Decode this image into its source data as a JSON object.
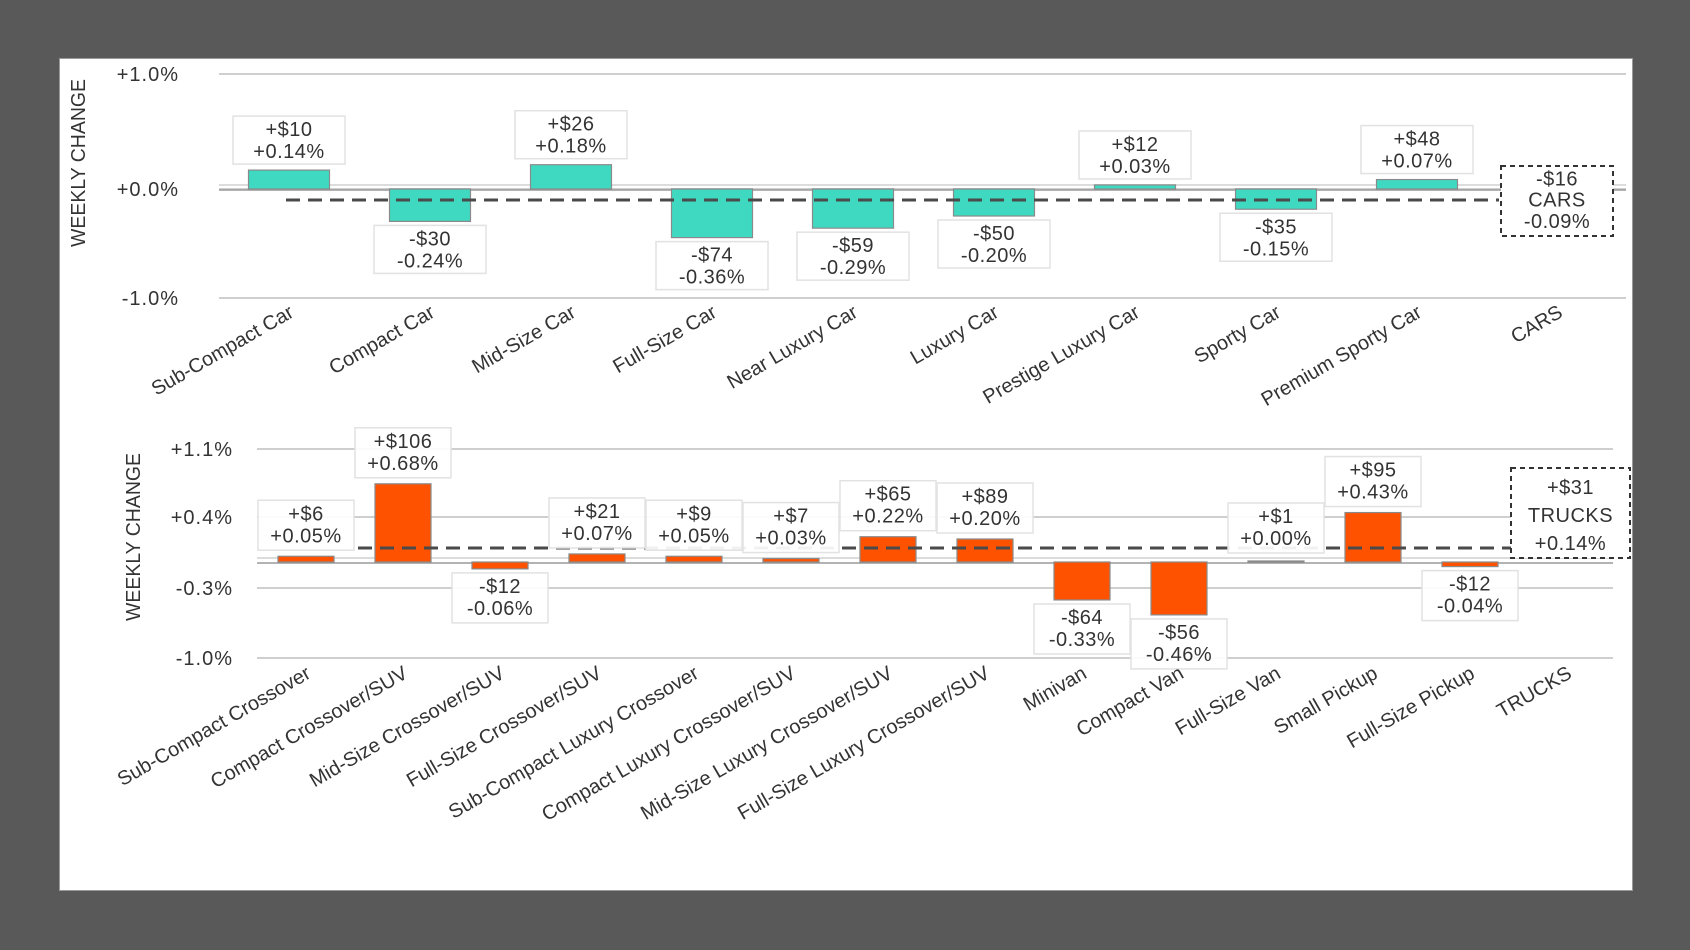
{
  "background_color": "#595959",
  "chart_data": [
    {
      "type": "bar",
      "title": "",
      "ylabel": "WEEKLY CHANGE",
      "xlabel": "",
      "yticks": [
        "+1.0%",
        "+0.0%",
        "-1.0%"
      ],
      "ytick_values": [
        1.0,
        0.0,
        -1.0
      ],
      "ylim": [
        -1.0,
        1.0
      ],
      "grid": true,
      "bar_color": "#3fd9c2",
      "categories": [
        "Sub-Compact Car",
        "Compact Car",
        "Mid-Size Car",
        "Full-Size Car",
        "Near Luxury Car",
        "Luxury Car",
        "Prestige Luxury Car",
        "Sporty Car",
        "Premium Sporty Car"
      ],
      "values": [
        0.14,
        -0.24,
        0.18,
        -0.36,
        -0.29,
        -0.2,
        0.03,
        -0.15,
        0.07
      ],
      "dollar_labels": [
        "+$10",
        "-$30",
        "+$26",
        "-$74",
        "-$59",
        "-$50",
        "+$12",
        "-$35",
        "+$48"
      ],
      "pct_labels": [
        "+0.14%",
        "-0.24%",
        "+0.18%",
        "-0.36%",
        "-0.29%",
        "-0.20%",
        "+0.03%",
        "-0.15%",
        "+0.07%"
      ],
      "summary": {
        "category": "CARS",
        "value": -0.09,
        "dollar": "-$16",
        "name": "CARS",
        "pct": "-0.09%"
      }
    },
    {
      "type": "bar",
      "title": "",
      "ylabel": "WEEKLY CHANGE",
      "xlabel": "",
      "yticks": [
        "+1.1%",
        "+0.4%",
        "-0.3%",
        "-1.0%"
      ],
      "ytick_values": [
        1.1,
        0.4,
        -0.3,
        -1.0
      ],
      "ylim": [
        -1.0,
        1.1
      ],
      "grid": true,
      "bar_color": "#ff5200",
      "categories": [
        "Sub-Compact Crossover",
        "Compact Crossover/SUV",
        "Mid-Size Crossover/SUV",
        "Full-Size Crossover/SUV",
        "Sub-Compact Luxury Crossover",
        "Compact Luxury Crossover/SUV",
        "Mid-Size Luxury Crossover/SUV",
        "Full-Size Luxury Crossover/SUV",
        "Minivan",
        "Compact Van",
        "Full-Size Van",
        "Small Pickup",
        "Full-Size Pickup"
      ],
      "values": [
        0.05,
        0.68,
        -0.06,
        0.07,
        0.05,
        0.03,
        0.22,
        0.2,
        -0.33,
        -0.46,
        0.0,
        0.43,
        -0.04
      ],
      "dollar_labels": [
        "+$6",
        "+$106",
        "-$12",
        "+$21",
        "+$9",
        "+$7",
        "+$65",
        "+$89",
        "-$64",
        "-$56",
        "+$1",
        "+$95",
        "-$12"
      ],
      "pct_labels": [
        "+0.05%",
        "+0.68%",
        "-0.06%",
        "+0.07%",
        "+0.05%",
        "+0.03%",
        "+0.22%",
        "+0.20%",
        "-0.33%",
        "-0.46%",
        "+0.00%",
        "+0.43%",
        "-0.04%"
      ],
      "summary": {
        "category": "TRUCKS",
        "value": 0.14,
        "dollar": "+$31",
        "name": "TRUCKS",
        "pct": "+0.14%"
      }
    }
  ]
}
